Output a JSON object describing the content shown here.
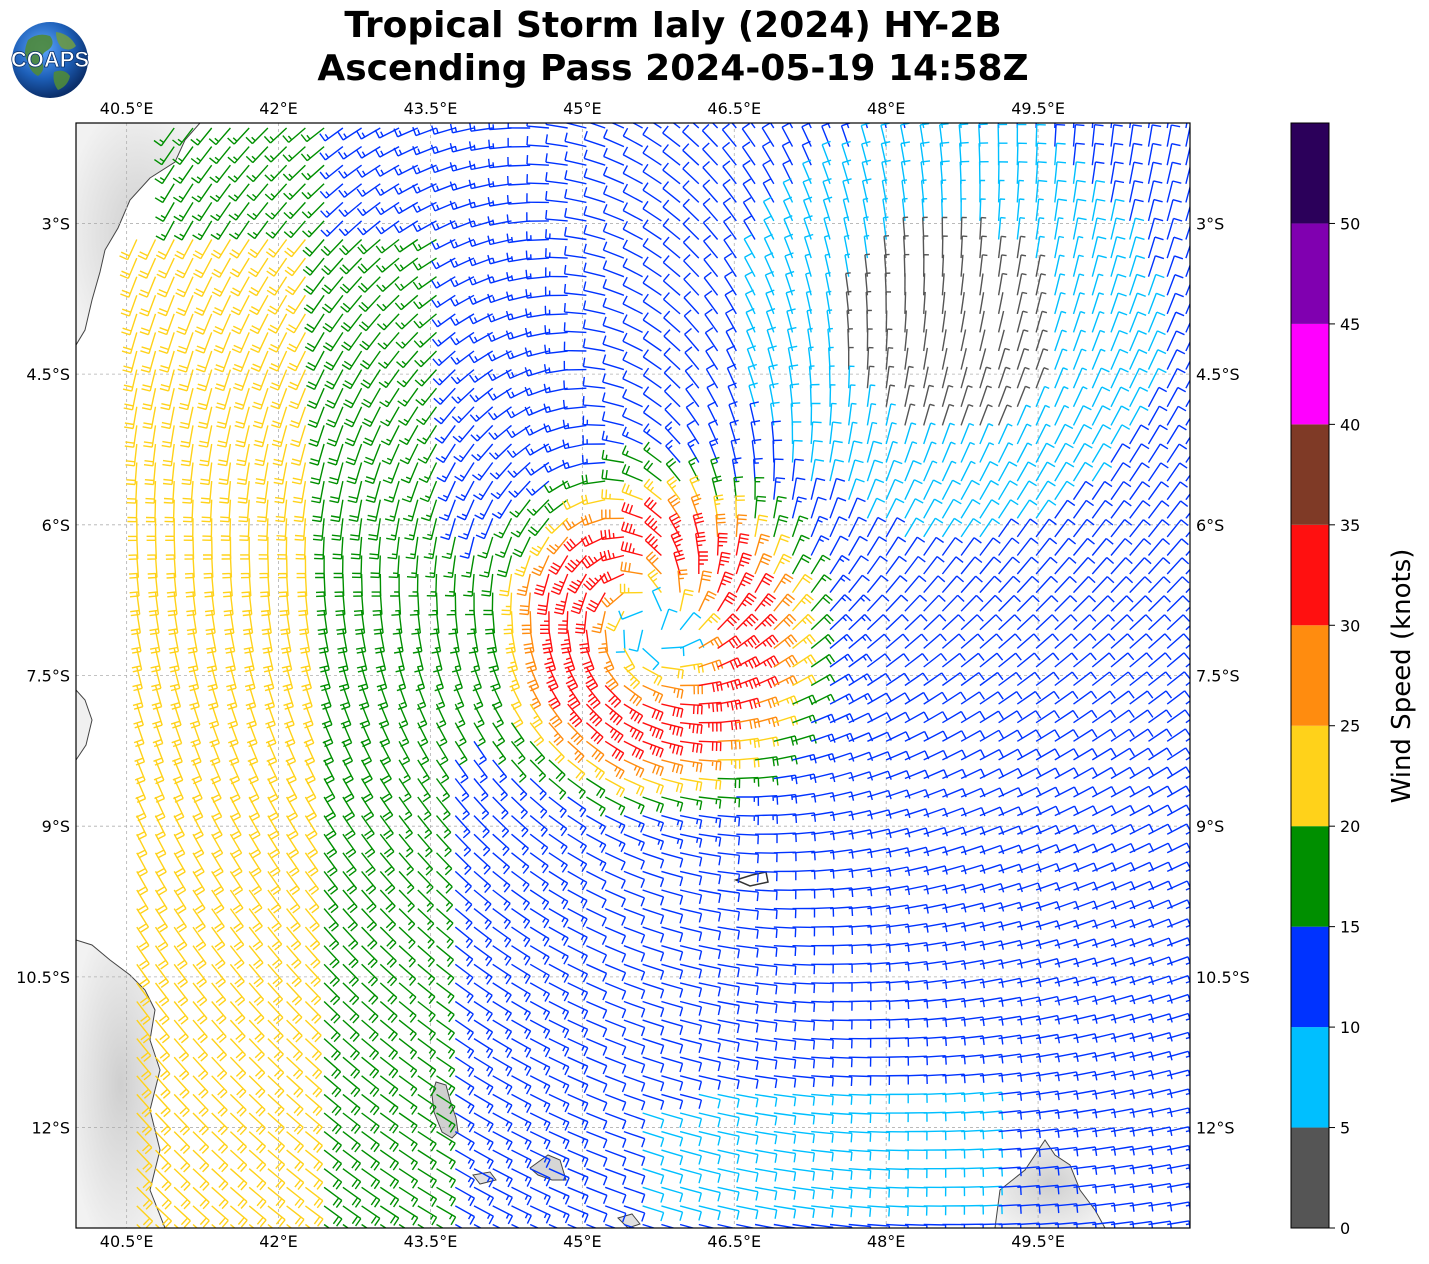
{
  "title": {
    "line1": "Tropical Storm Ialy (2024) HY-2B",
    "line2": "Ascending Pass 2024-05-19 14:58Z"
  },
  "logo": {
    "text": "COAPS",
    "icon": "globe-logo-icon"
  },
  "map": {
    "lon_range": [
      40.0,
      51.0
    ],
    "lat_range": [
      -13.0,
      -2.0
    ],
    "grid_lines": true,
    "lon_ticks": [
      {
        "value": 40.5,
        "label": "40.5°E"
      },
      {
        "value": 42.0,
        "label": "42°E"
      },
      {
        "value": 43.5,
        "label": "43.5°E"
      },
      {
        "value": 45.0,
        "label": "45°E"
      },
      {
        "value": 46.5,
        "label": "46.5°E"
      },
      {
        "value": 48.0,
        "label": "48°E"
      },
      {
        "value": 49.5,
        "label": "49.5°E"
      }
    ],
    "lat_ticks": [
      {
        "value": -3.0,
        "label": "3°S"
      },
      {
        "value": -4.5,
        "label": "4.5°S"
      },
      {
        "value": -6.0,
        "label": "6°S"
      },
      {
        "value": -7.5,
        "label": "7.5°S"
      },
      {
        "value": -9.0,
        "label": "9°S"
      },
      {
        "value": -10.5,
        "label": "10.5°S"
      },
      {
        "value": -12.0,
        "label": "12°S"
      }
    ],
    "storm_center": {
      "lon": 45.7,
      "lat": -7.1
    },
    "calm_center": {
      "lon": 48.6,
      "lat": -4.1
    }
  },
  "colorbar": {
    "label": "Wind Speed (knots)",
    "ticks": [
      "0",
      "5",
      "10",
      "15",
      "20",
      "25",
      "30",
      "35",
      "40",
      "45",
      "50"
    ],
    "bins": [
      {
        "min": 0,
        "max": 5,
        "color": "#555555"
      },
      {
        "min": 5,
        "max": 10,
        "color": "#00bfff"
      },
      {
        "min": 10,
        "max": 15,
        "color": "#0033ff"
      },
      {
        "min": 15,
        "max": 20,
        "color": "#008f00"
      },
      {
        "min": 20,
        "max": 25,
        "color": "#ffd21a"
      },
      {
        "min": 25,
        "max": 30,
        "color": "#ff8c0f"
      },
      {
        "min": 30,
        "max": 35,
        "color": "#ff1010"
      },
      {
        "min": 35,
        "max": 40,
        "color": "#7f3a26"
      },
      {
        "min": 40,
        "max": 45,
        "color": "#ff00ff"
      },
      {
        "min": 45,
        "max": 50,
        "color": "#8000b0"
      },
      {
        "min": 50,
        "max": 55,
        "color": "#2b005a"
      }
    ]
  }
}
